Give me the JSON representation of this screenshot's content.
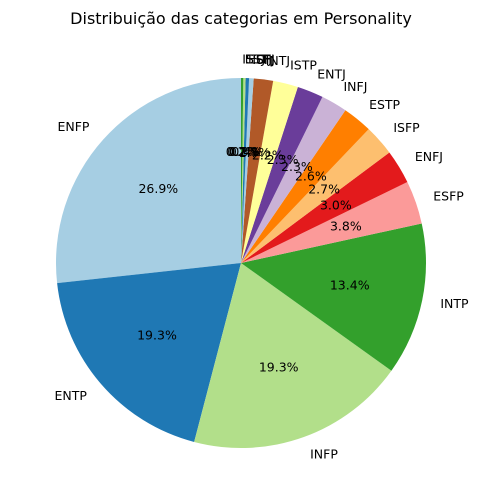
{
  "chart_data": {
    "type": "pie",
    "title": "Distribuição das categorias em Personality",
    "start_angle_deg": 90,
    "direction": "counterclockwise",
    "slices": [
      {
        "label": "ENFP",
        "value": 26.9,
        "pct_label": "26.9%",
        "color": "#a6cee3"
      },
      {
        "label": "ENTP",
        "value": 19.3,
        "pct_label": "19.3%",
        "color": "#1f78b4"
      },
      {
        "label": "INFP",
        "value": 19.3,
        "pct_label": "19.3%",
        "color": "#b2df8a"
      },
      {
        "label": "INTP",
        "value": 13.4,
        "pct_label": "13.4%",
        "color": "#33a02c"
      },
      {
        "label": "ESFP",
        "value": 3.8,
        "pct_label": "3.8%",
        "color": "#fb9a99"
      },
      {
        "label": "ENFJ",
        "value": 3.0,
        "pct_label": "3.0%",
        "color": "#e31a1c"
      },
      {
        "label": "ISFP",
        "value": 2.7,
        "pct_label": "2.7%",
        "color": "#fdbf6f"
      },
      {
        "label": "ESTP",
        "value": 2.6,
        "pct_label": "2.6%",
        "color": "#ff7f00"
      },
      {
        "label": "INFJ",
        "value": 2.3,
        "pct_label": "2.3%",
        "color": "#cab2d6"
      },
      {
        "label": "ENTJ",
        "value": 2.3,
        "pct_label": "2.3%",
        "color": "#6a3d9a"
      },
      {
        "label": "ISTP",
        "value": 2.2,
        "pct_label": "2.2%",
        "color": "#ffff99"
      },
      {
        "label": "INTJ",
        "value": 1.7,
        "pct_label": "1.7%",
        "color": "#b15928"
      },
      {
        "label": "ISFJ",
        "value": 0.4,
        "pct_label": "0.4%",
        "color": "#a6cee3"
      },
      {
        "label": "ESFJ",
        "value": 0.3,
        "pct_label": "0.3%",
        "color": "#1f78b4"
      },
      {
        "label": "ESTJ",
        "value": 0.2,
        "pct_label": "0.2%",
        "color": "#b2df8a"
      },
      {
        "label": "ISTJ",
        "value": 0.2,
        "pct_label": "0.2%",
        "color": "#33a02c"
      }
    ]
  }
}
